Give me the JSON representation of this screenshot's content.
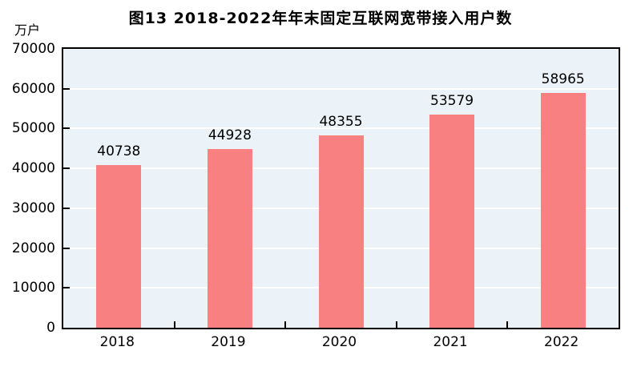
{
  "title": "图13  2018-2022年年末固定互联网宽带接入用户数",
  "unit_label": "万户",
  "chart_data": {
    "type": "bar",
    "title": "图13  2018-2022年年末固定互联网宽带接入用户数",
    "categories": [
      "2018",
      "2019",
      "2020",
      "2021",
      "2022"
    ],
    "values": [
      40738,
      44928,
      48355,
      53579,
      58965
    ],
    "value_labels": [
      "40738",
      "44928",
      "48355",
      "53579",
      "58965"
    ],
    "xlabel": "",
    "ylabel": "万户",
    "ylim": [
      0,
      70000
    ],
    "ytick_step": 10000,
    "ytick_labels": [
      "0",
      "10000",
      "20000",
      "30000",
      "40000",
      "50000",
      "60000",
      "70000"
    ],
    "grid": true,
    "legend_position": "none",
    "colors": {
      "bar": "#f98080",
      "plot_background": "#ebf3f8",
      "gridline": "#ffffff",
      "axis": "#000000",
      "text": "#000000",
      "page_background": "#ffffff"
    }
  }
}
